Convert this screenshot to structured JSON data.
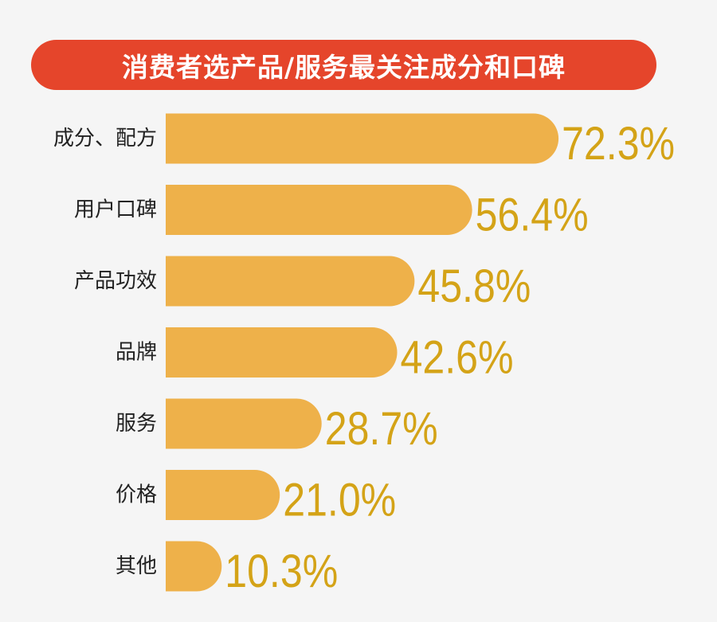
{
  "colors": {
    "background": "#f5f5f5",
    "title_bg": "#e5452b",
    "title_text": "#ffffff",
    "bar": "#eeb14a",
    "value_text": "#d4a317",
    "label_text": "#222222"
  },
  "chart_data": {
    "type": "bar",
    "orientation": "horizontal",
    "title": "消费者选产品/服务最关注成分和口碑",
    "categories": [
      "成分、配方",
      "用户口碑",
      "产品功效",
      "品牌",
      "服务",
      "价格",
      "其他"
    ],
    "values": [
      72.3,
      56.4,
      45.8,
      42.6,
      28.7,
      21.0,
      10.3
    ],
    "value_labels": [
      "72.3%",
      "56.4%",
      "45.8%",
      "42.6%",
      "28.7%",
      "21.0%",
      "10.3%"
    ],
    "unit": "%",
    "grid": false,
    "legend": "none"
  }
}
